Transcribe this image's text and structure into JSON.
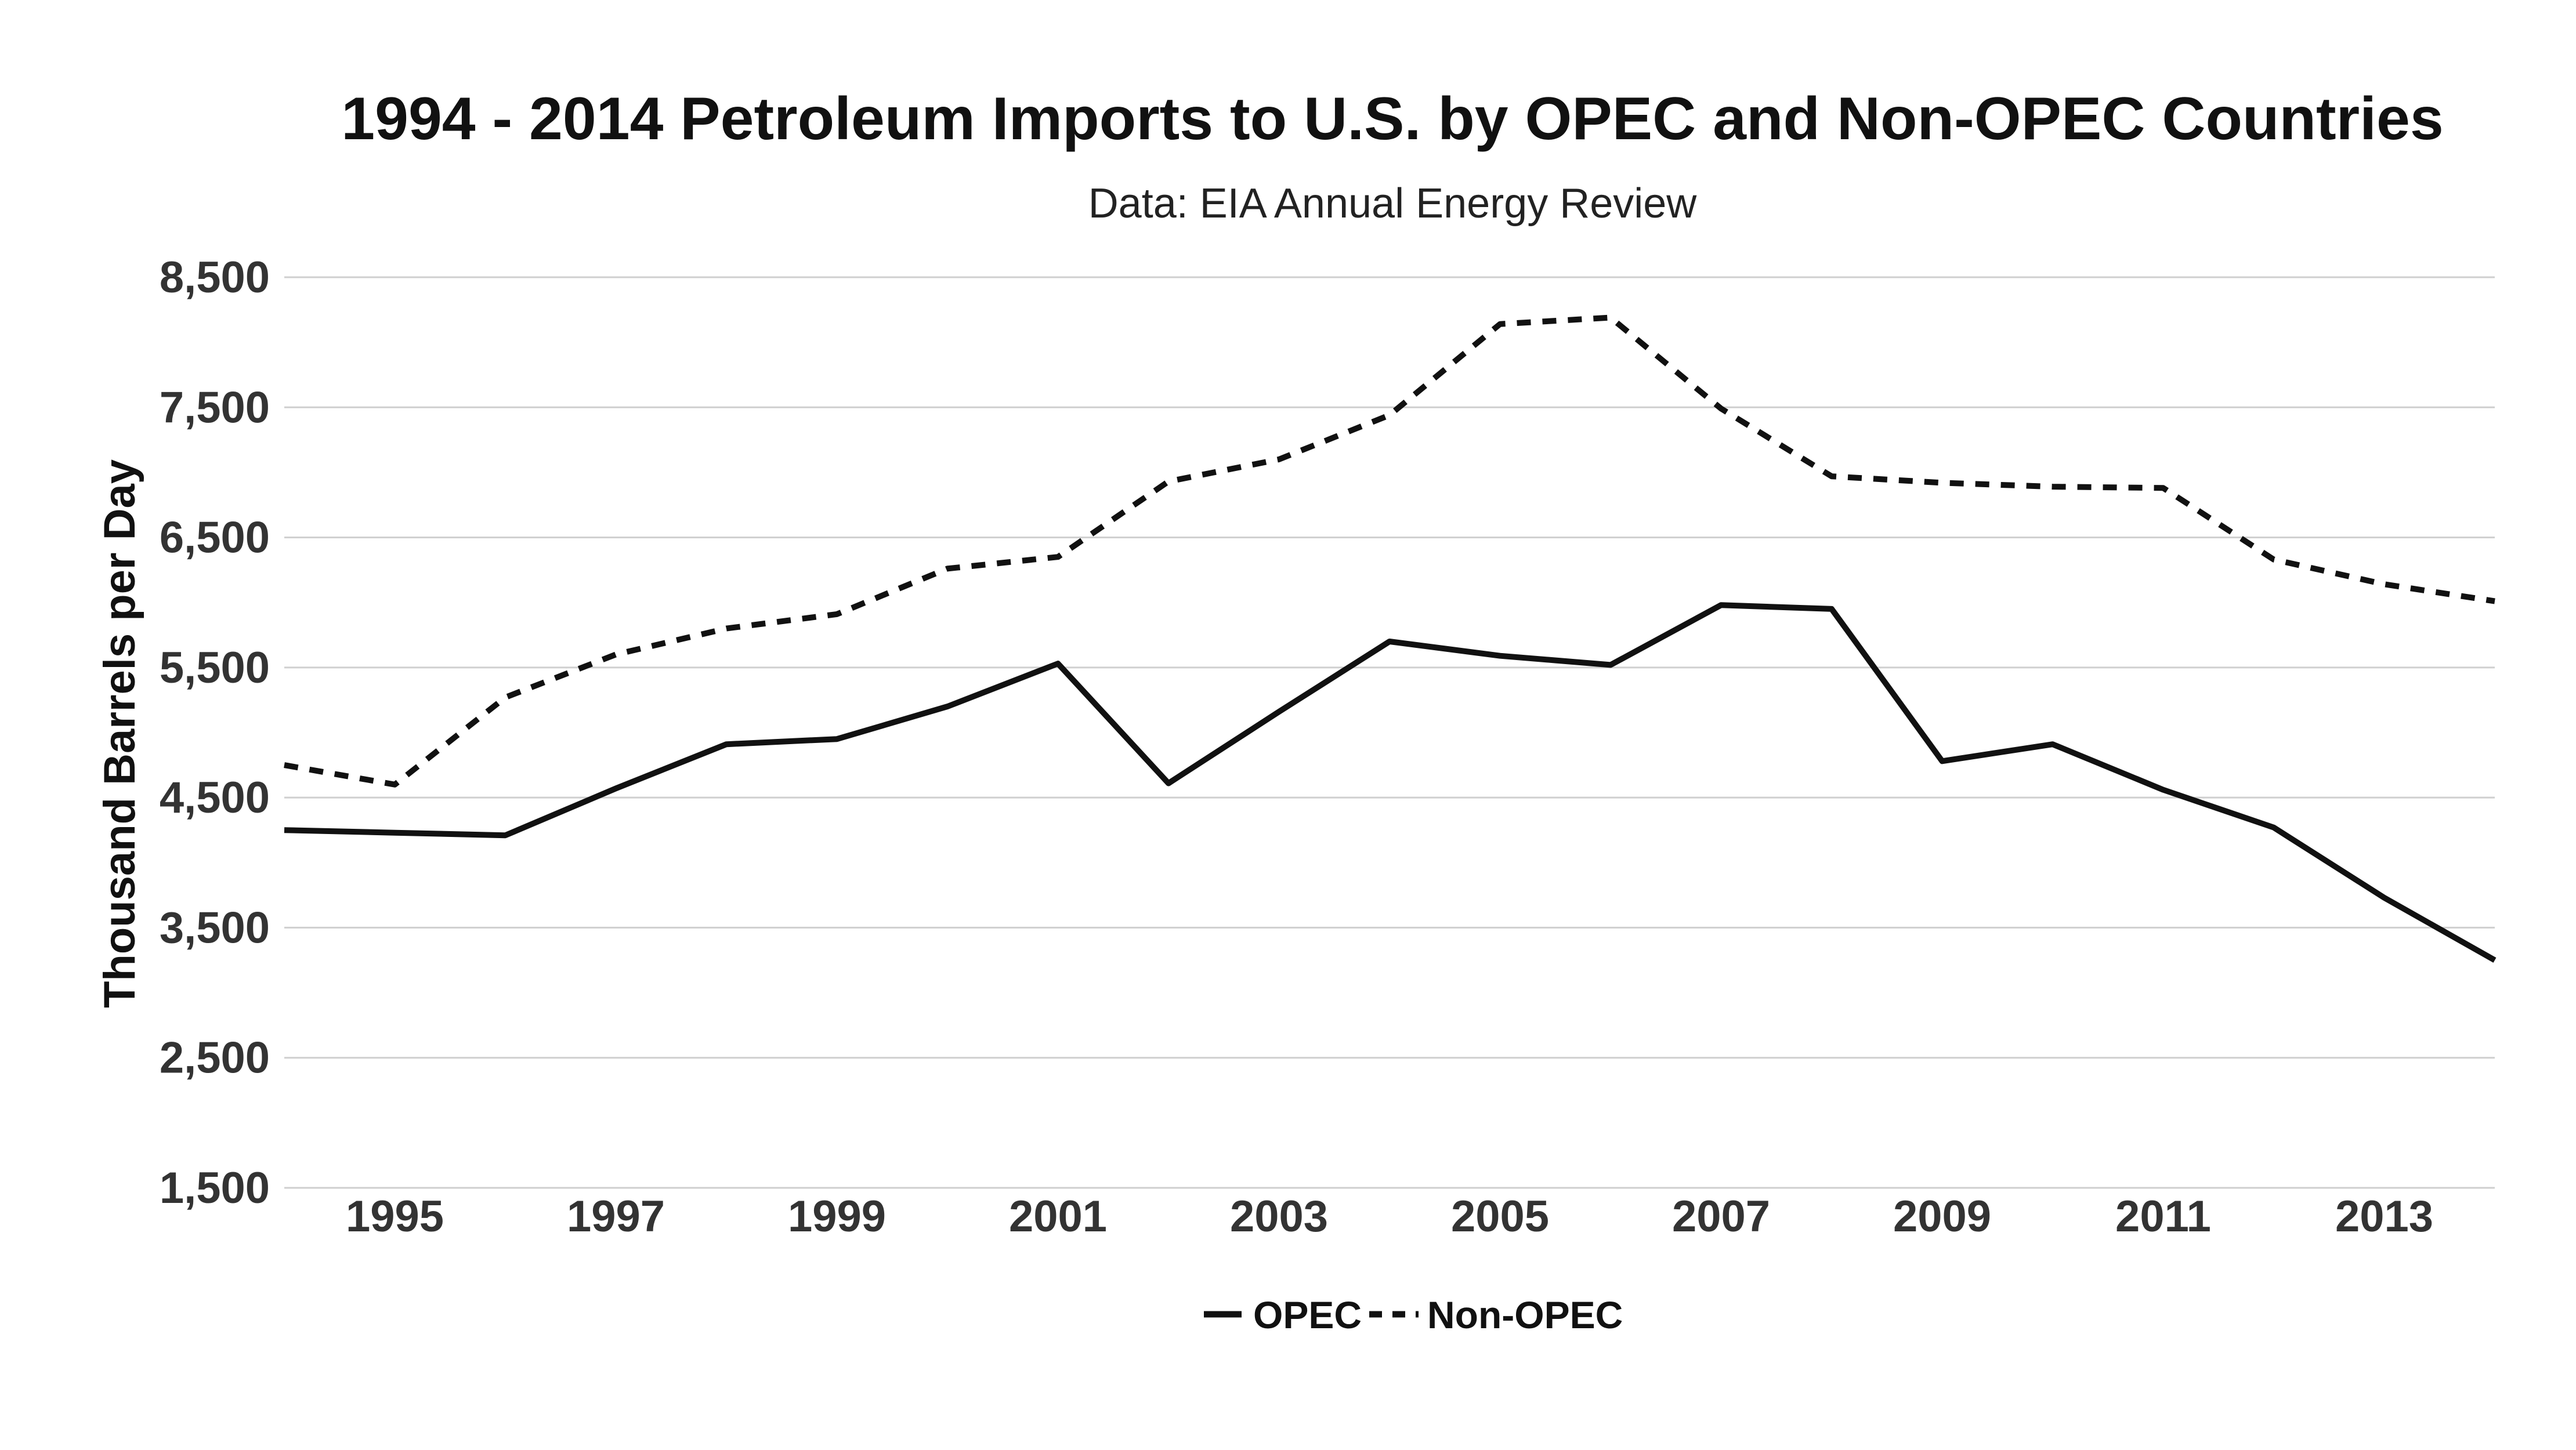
{
  "chart_data": {
    "type": "line",
    "title": "1994 - 2014 Petroleum Imports to U.S. by OPEC and Non-OPEC Countries",
    "subtitle": "Data: EIA Annual Energy Review",
    "xlabel": "",
    "ylabel": "Thousand Barrels per Day",
    "x": [
      1994,
      1995,
      1996,
      1997,
      1998,
      1999,
      2000,
      2001,
      2002,
      2003,
      2004,
      2005,
      2006,
      2007,
      2008,
      2009,
      2010,
      2011,
      2012,
      2013,
      2014
    ],
    "xlim": [
      1994,
      2014
    ],
    "x_ticks": [
      "1995",
      "1997",
      "1999",
      "2001",
      "2003",
      "2005",
      "2007",
      "2009",
      "2011",
      "2013"
    ],
    "ylim": [
      1500,
      8500
    ],
    "y_ticks": [
      "1,500",
      "2,500",
      "3,500",
      "4,500",
      "5,500",
      "6,500",
      "7,500",
      "8,500"
    ],
    "grid": true,
    "legend_position": "bottom-center",
    "series": [
      {
        "name": "OPEC",
        "style": "solid",
        "color": "#111111",
        "values": [
          4250,
          4230,
          4210,
          4570,
          4910,
          4950,
          5200,
          5530,
          4610,
          5160,
          5700,
          5590,
          5520,
          5980,
          5950,
          4780,
          4910,
          4560,
          4270,
          3730,
          3250
        ]
      },
      {
        "name": "Non-OPEC",
        "style": "dashed",
        "color": "#111111",
        "values": [
          4750,
          4600,
          5270,
          5600,
          5800,
          5910,
          6260,
          6350,
          6930,
          7100,
          7440,
          8140,
          8190,
          7490,
          6970,
          6920,
          6890,
          6880,
          6330,
          6140,
          6010
        ]
      }
    ]
  }
}
